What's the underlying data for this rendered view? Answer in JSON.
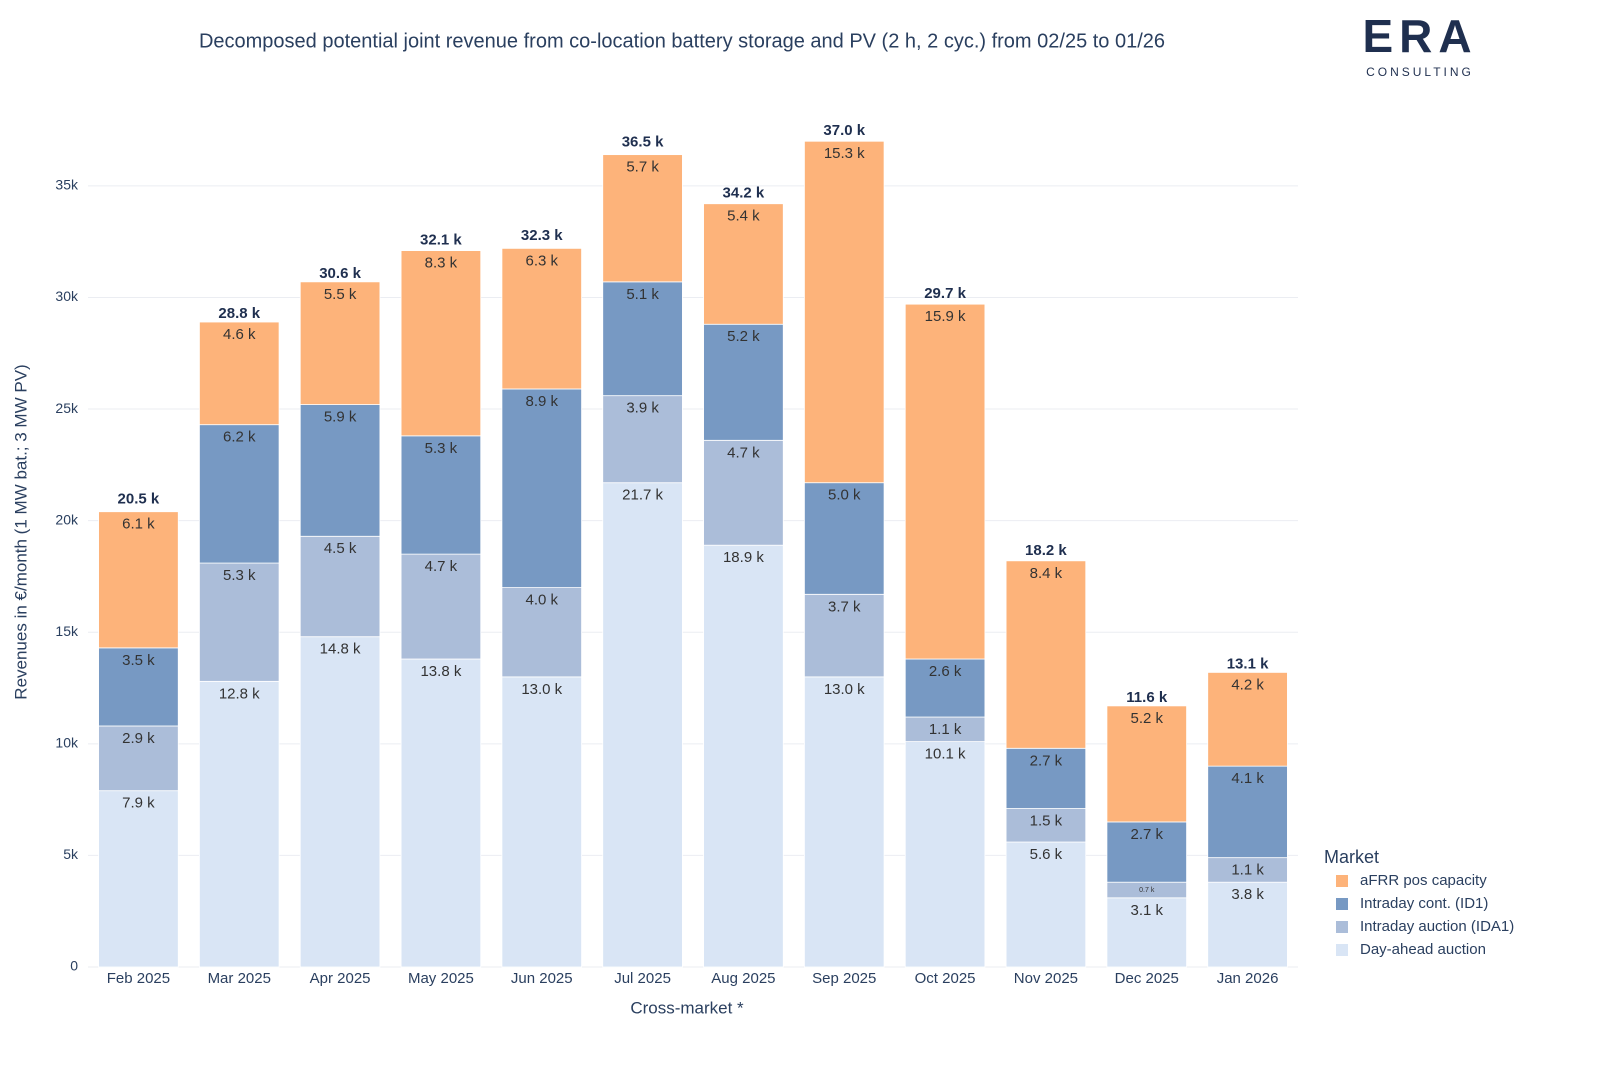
{
  "chart_data": {
    "type": "stacked-bar",
    "title": "Decomposed potential joint revenue from co-location battery storage and PV (2 h, 2 cyc.) from 02/25 to 01/26",
    "x_label": "Cross-market *",
    "y_label": "Revenues in €/month (1 MW bat.; 3 MW PV)",
    "legend_title": "Market",
    "legend_position": "right",
    "grid": true,
    "ylim": [
      0,
      38400
    ],
    "yticks": [
      0,
      {
        "value": 5000,
        "label": "5k"
      },
      {
        "value": 10000,
        "label": "10k"
      },
      {
        "value": 15000,
        "label": "15k"
      },
      {
        "value": 20000,
        "label": "20k"
      },
      {
        "value": 25000,
        "label": "25k"
      },
      {
        "value": 30000,
        "label": "30k"
      },
      {
        "value": 35000,
        "label": "35k"
      }
    ],
    "categories": [
      "Feb 2025",
      "Mar 2025",
      "Apr 2025",
      "May 2025",
      "Jun 2025",
      "Jul 2025",
      "Aug 2025",
      "Sep 2025",
      "Oct 2025",
      "Nov 2025",
      "Dec 2025",
      "Jan 2026"
    ],
    "series": [
      {
        "name": "Day-ahead auction",
        "color": "#d9e5f5",
        "values": [
          7900,
          12800,
          14800,
          13800,
          13000,
          21700,
          18900,
          13000,
          10100,
          5600,
          3100,
          3800
        ],
        "value_labels": [
          "7.9 k",
          "12.8 k",
          "14.8 k",
          "13.8 k",
          "13.0 k",
          "21.7 k",
          "18.9 k",
          "13.0 k",
          "10.1 k",
          "5.6 k",
          "3.1 k",
          "3.8 k"
        ]
      },
      {
        "name": "Intraday auction (IDA1)",
        "color": "#abbdd9",
        "values": [
          2900,
          5300,
          4500,
          4700,
          4000,
          3900,
          4700,
          3700,
          1100,
          1500,
          700,
          1100
        ],
        "value_labels": [
          "2.9 k",
          "5.3 k",
          "4.5 k",
          "4.7 k",
          "4.0 k",
          "3.9 k",
          "4.7 k",
          "3.7 k",
          "1.1 k",
          "1.5 k",
          "0.7 k",
          "1.1 k"
        ]
      },
      {
        "name": "Intraday cont. (ID1)",
        "color": "#7799c3",
        "values": [
          3500,
          6200,
          5900,
          5300,
          8900,
          5100,
          5200,
          5000,
          2600,
          2700,
          2700,
          4100
        ],
        "value_labels": [
          "3.5 k",
          "6.2 k",
          "5.9 k",
          "5.3 k",
          "8.9 k",
          "5.1 k",
          "5.2 k",
          "5.0 k",
          "2.6 k",
          "2.7 k",
          "2.7 k",
          "4.1 k"
        ]
      },
      {
        "name": "aFRR pos capacity",
        "color": "#fdb37a",
        "values": [
          6100,
          4600,
          5500,
          8300,
          6300,
          5700,
          5400,
          15300,
          15900,
          8400,
          5200,
          4200
        ],
        "value_labels": [
          "6.1 k",
          "4.6 k",
          "5.5 k",
          "8.3 k",
          "6.3 k",
          "5.7 k",
          "5.4 k",
          "15.3 k",
          "15.9 k",
          "8.4 k",
          "5.2 k",
          "4.2 k"
        ]
      }
    ],
    "totals": {
      "values": [
        20500,
        28800,
        30600,
        32100,
        32300,
        36500,
        34200,
        37000,
        29700,
        18200,
        11600,
        13100
      ],
      "value_labels": [
        "20.5 k",
        "28.8 k",
        "30.6 k",
        "32.1 k",
        "32.3 k",
        "36.5 k",
        "34.2 k",
        "37.0 k",
        "29.7 k",
        "18.2 k",
        "11.6 k",
        "13.1 k"
      ]
    }
  },
  "logo": {
    "name": "ERA",
    "tagline": "CONSULTING"
  }
}
